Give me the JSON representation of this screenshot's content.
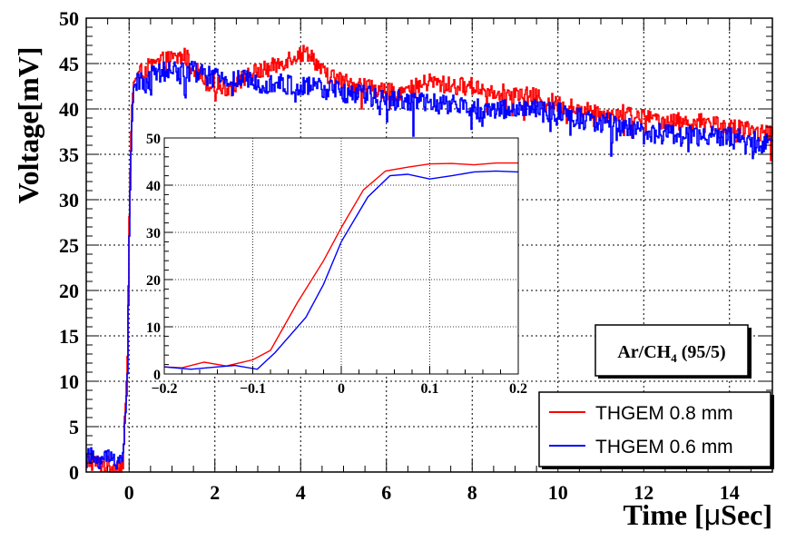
{
  "chart_data": [
    {
      "id": "main",
      "type": "line",
      "xlabel_main": "Time [",
      "xlabel_mu": "μ",
      "xlabel_tail": "Sec]",
      "ylabel": "Voltage[mV]",
      "xlim": [
        -1,
        15
      ],
      "ylim": [
        0,
        50
      ],
      "xticks": [
        0,
        2,
        4,
        6,
        8,
        10,
        12,
        14
      ],
      "yticks": [
        0,
        5,
        10,
        15,
        20,
        25,
        30,
        35,
        40,
        45,
        50
      ],
      "grid": true,
      "series": [
        {
          "name": "THGEM 0.8 mm",
          "color": "#ff0000",
          "noise": 1.0,
          "points": [
            [
              -1,
              1.2
            ],
            [
              -0.3,
              0.6
            ],
            [
              -0.15,
              0.8
            ],
            [
              -0.05,
              12
            ],
            [
              0,
              30
            ],
            [
              0.05,
              40
            ],
            [
              0.1,
              43
            ],
            [
              0.3,
              44.2
            ],
            [
              0.8,
              45.3
            ],
            [
              1.3,
              45.8
            ],
            [
              1.8,
              43
            ],
            [
              2.3,
              42.3
            ],
            [
              2.8,
              43.8
            ],
            [
              3.3,
              44.5
            ],
            [
              3.8,
              45.8
            ],
            [
              4.2,
              46.3
            ],
            [
              4.5,
              44
            ],
            [
              5,
              43
            ],
            [
              5.5,
              42.5
            ],
            [
              6,
              41.8
            ],
            [
              6.5,
              42
            ],
            [
              7,
              43
            ],
            [
              7.5,
              42.5
            ],
            [
              8,
              42.5
            ],
            [
              8.5,
              42
            ],
            [
              9,
              41.5
            ],
            [
              9.5,
              41.3
            ],
            [
              10,
              40.5
            ],
            [
              10.5,
              40
            ],
            [
              11,
              39.5
            ],
            [
              11.5,
              39.5
            ],
            [
              12,
              39
            ],
            [
              12.5,
              38.7
            ],
            [
              13,
              38.5
            ],
            [
              13.5,
              38.5
            ],
            [
              14,
              38
            ],
            [
              14.5,
              37.5
            ],
            [
              15,
              37.3
            ]
          ]
        },
        {
          "name": "THGEM 0.6 mm",
          "color": "#0000ff",
          "noise": 1.2,
          "points": [
            [
              -1,
              1.5
            ],
            [
              -0.3,
              1.5
            ],
            [
              -0.15,
              1.3
            ],
            [
              -0.05,
              10
            ],
            [
              0,
              28
            ],
            [
              0.05,
              38
            ],
            [
              0.1,
              42.5
            ],
            [
              0.5,
              43.5
            ],
            [
              1,
              44.3
            ],
            [
              1.5,
              44.2
            ],
            [
              2,
              43.3
            ],
            [
              2.5,
              43.2
            ],
            [
              3,
              43
            ],
            [
              3.5,
              42.8
            ],
            [
              4,
              42.3
            ],
            [
              4.5,
              42.3
            ],
            [
              5,
              41.8
            ],
            [
              5.5,
              41.5
            ],
            [
              6,
              41
            ],
            [
              6.5,
              41
            ],
            [
              7,
              40.5
            ],
            [
              7.5,
              40.5
            ],
            [
              8,
              40
            ],
            [
              8.5,
              40
            ],
            [
              9,
              40
            ],
            [
              9.5,
              39.8
            ],
            [
              10,
              39.5
            ],
            [
              10.5,
              39
            ],
            [
              11,
              38.5
            ],
            [
              11.5,
              38
            ],
            [
              12,
              37.5
            ],
            [
              12.5,
              37.3
            ],
            [
              13,
              37
            ],
            [
              13.5,
              37
            ],
            [
              14,
              36.8
            ],
            [
              14.5,
              36.5
            ],
            [
              15,
              36
            ]
          ]
        }
      ],
      "legend": {
        "position": "bottom-right"
      },
      "annotation": {
        "prefix": "Ar/CH",
        "subscript": "4",
        "suffix": " (95/5)"
      }
    },
    {
      "id": "inset",
      "type": "line",
      "xlim": [
        -0.2,
        0.2
      ],
      "ylim": [
        0,
        50
      ],
      "xticks": [
        -0.2,
        -0.1,
        0,
        0.1,
        0.2
      ],
      "xtick_labels": [
        "−0.2",
        "−0.1",
        "0",
        "0.1",
        "0.2"
      ],
      "yticks": [
        0,
        10,
        20,
        30,
        40,
        50
      ],
      "grid": true,
      "series": [
        {
          "name": "THGEM 0.8 mm",
          "color": "#ff0000",
          "points": [
            [
              -0.2,
              1.5
            ],
            [
              -0.18,
              1.3
            ],
            [
              -0.155,
              2.5
            ],
            [
              -0.13,
              1.7
            ],
            [
              -0.1,
              3
            ],
            [
              -0.08,
              5
            ],
            [
              -0.05,
              15
            ],
            [
              -0.02,
              24
            ],
            [
              0,
              31
            ],
            [
              0.025,
              39
            ],
            [
              0.05,
              43
            ],
            [
              0.075,
              43.8
            ],
            [
              0.1,
              44.5
            ],
            [
              0.125,
              44.6
            ],
            [
              0.15,
              44.3
            ],
            [
              0.175,
              44.7
            ],
            [
              0.2,
              44.7
            ]
          ]
        },
        {
          "name": "THGEM 0.6 mm",
          "color": "#0000ff",
          "points": [
            [
              -0.2,
              1.5
            ],
            [
              -0.17,
              1
            ],
            [
              -0.14,
              1.5
            ],
            [
              -0.12,
              1.8
            ],
            [
              -0.095,
              1
            ],
            [
              -0.075,
              4.5
            ],
            [
              -0.04,
              12
            ],
            [
              -0.02,
              19
            ],
            [
              0,
              28
            ],
            [
              0.03,
              37.5
            ],
            [
              0.055,
              42
            ],
            [
              0.075,
              42.3
            ],
            [
              0.1,
              41.3
            ],
            [
              0.125,
              42
            ],
            [
              0.15,
              42.8
            ],
            [
              0.175,
              43
            ],
            [
              0.2,
              42.8
            ]
          ]
        }
      ]
    }
  ]
}
